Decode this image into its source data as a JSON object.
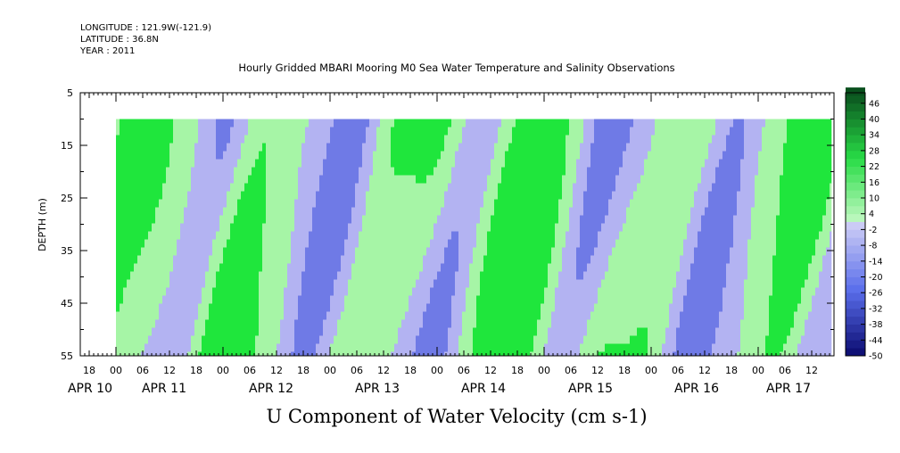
{
  "header": {
    "longitude": "LONGITUDE : 121.9W(-121.9)",
    "latitude": "LATITUDE : 36.8N",
    "year": "YEAR : 2011"
  },
  "chart_data": {
    "type": "heatmap",
    "title": "Hourly Gridded MBARI Mooring M0 Sea Water Temperature and Salinity Observations",
    "xlabel": "U Component of Water Velocity (cm s-1)",
    "ylabel": "DEPTH (m)",
    "ylim": [
      55,
      5
    ],
    "y_ticks": [
      "5",
      "15",
      "25",
      "35",
      "45",
      "55"
    ],
    "x_hour_ticks": [
      "18",
      "00",
      "06",
      "12",
      "18",
      "00",
      "06",
      "12",
      "18",
      "00",
      "06",
      "12",
      "18",
      "00",
      "06",
      "12",
      "18",
      "00",
      "06",
      "12",
      "18",
      "00",
      "06",
      "12",
      "18",
      "00",
      "06",
      "12"
    ],
    "x_day_labels": [
      "APR 10",
      "APR 11",
      "APR 12",
      "APR 13",
      "APR 14",
      "APR 15",
      "APR 16",
      "APR 17"
    ],
    "colorbar_ticks": [
      "46",
      "40",
      "34",
      "28",
      "22",
      "16",
      "10",
      "4",
      "-2",
      "-8",
      "-14",
      "-20",
      "-26",
      "-32",
      "-38",
      "-44",
      "-50"
    ],
    "value_range": [
      -50,
      50
    ],
    "data_depth_range_m": [
      10,
      55
    ],
    "colors": {
      "positive_light": "#a6f5a6",
      "positive_strong": "#1fe63c",
      "negative_light": "#b3b3f2",
      "negative_strong": "#6f7ae6"
    }
  }
}
